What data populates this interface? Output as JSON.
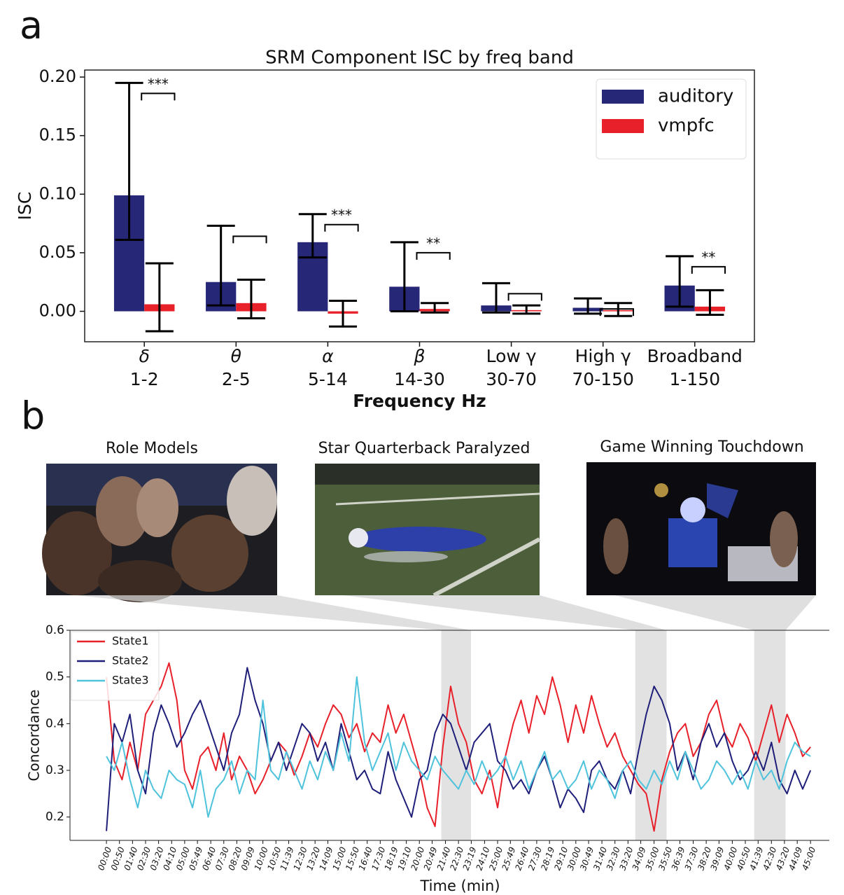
{
  "chart_data": [
    {
      "type": "bar",
      "panel": "a",
      "title": "SRM Component ISC by freq band",
      "xlabel": "Frequency Hz",
      "ylabel": "ISC",
      "categories": [
        [
          "δ",
          "1-2"
        ],
        [
          "θ",
          "2-5"
        ],
        [
          "α",
          "5-14"
        ],
        [
          "β",
          "14-30"
        ],
        [
          "Low γ",
          "30-70"
        ],
        [
          "High γ",
          "70-150"
        ],
        [
          "Broadband",
          "1-150"
        ]
      ],
      "series": [
        {
          "name": "auditory",
          "color": "#262877",
          "values": [
            0.099,
            0.025,
            0.059,
            0.021,
            0.005,
            0.003,
            0.022
          ],
          "ci_low": [
            0.061,
            0.005,
            0.046,
            0.0,
            -0.001,
            -0.002,
            0.004
          ],
          "ci_high": [
            0.195,
            0.073,
            0.083,
            0.059,
            0.024,
            0.011,
            0.047
          ]
        },
        {
          "name": "vmpfc",
          "color": "#e8202a",
          "values": [
            0.006,
            0.007,
            -0.002,
            0.002,
            0.001,
            0.001,
            0.004
          ],
          "ci_low": [
            -0.017,
            -0.006,
            -0.013,
            -0.001,
            -0.002,
            -0.004,
            -0.003
          ],
          "ci_high": [
            0.041,
            0.027,
            0.009,
            0.007,
            0.005,
            0.007,
            0.018
          ]
        }
      ],
      "significance": [
        "***",
        null,
        "***",
        "**",
        null,
        null,
        "**"
      ],
      "ylim": [
        -0.026,
        0.206
      ],
      "yticks": [
        {
          "value": 0,
          "label": "0.00"
        },
        {
          "value": 0.05,
          "label": "0.05"
        },
        {
          "value": 0.1,
          "label": "0.10"
        },
        {
          "value": 0.15,
          "label": "0.15"
        },
        {
          "value": 0.2,
          "label": "0.20"
        }
      ],
      "legend": "upper right",
      "grid": false
    },
    {
      "type": "line",
      "panel": "b",
      "xlabel": "Time (min)",
      "ylabel": "Concordance",
      "x": [
        0,
        0.5,
        1,
        1.5,
        2,
        2.5,
        3,
        3.5,
        4,
        4.5,
        5,
        5.5,
        6,
        6.5,
        7,
        7.5,
        8,
        8.5,
        9,
        9.5,
        10,
        10.5,
        11,
        11.5,
        12,
        12.5,
        13,
        13.5,
        14,
        14.5,
        15,
        15.5,
        16,
        16.5,
        17,
        17.5,
        18,
        18.5,
        19,
        19.5,
        20,
        20.5,
        21,
        21.5,
        22,
        22.5,
        23,
        23.5,
        24,
        24.5,
        25,
        25.5,
        26,
        26.5,
        27,
        27.5,
        28,
        28.5,
        29,
        29.5,
        30,
        30.5,
        31,
        31.5,
        32,
        32.5,
        33,
        33.5,
        34,
        34.5,
        35,
        35.5,
        36,
        36.5,
        37,
        37.5,
        38,
        38.5,
        39,
        39.5,
        40,
        40.5,
        41,
        41.5,
        42,
        42.5,
        43,
        43.5,
        44,
        44.5,
        45
      ],
      "series": [
        {
          "name": "State1",
          "color": "#e8202a",
          "values": [
            0.5,
            0.32,
            0.28,
            0.36,
            0.3,
            0.42,
            0.45,
            0.48,
            0.53,
            0.45,
            0.3,
            0.26,
            0.33,
            0.35,
            0.3,
            0.38,
            0.28,
            0.33,
            0.3,
            0.25,
            0.28,
            0.32,
            0.36,
            0.34,
            0.29,
            0.33,
            0.38,
            0.35,
            0.4,
            0.44,
            0.42,
            0.37,
            0.4,
            0.34,
            0.38,
            0.36,
            0.44,
            0.38,
            0.42,
            0.36,
            0.3,
            0.22,
            0.18,
            0.35,
            0.48,
            0.4,
            0.36,
            0.28,
            0.25,
            0.3,
            0.22,
            0.33,
            0.4,
            0.45,
            0.38,
            0.46,
            0.42,
            0.5,
            0.44,
            0.36,
            0.44,
            0.38,
            0.46,
            0.4,
            0.35,
            0.38,
            0.33,
            0.3,
            0.27,
            0.25,
            0.17,
            0.28,
            0.34,
            0.38,
            0.4,
            0.33,
            0.36,
            0.42,
            0.45,
            0.38,
            0.35,
            0.4,
            0.37,
            0.32,
            0.38,
            0.44,
            0.36,
            0.42,
            0.38,
            0.33,
            0.35
          ]
        },
        {
          "name": "State2",
          "color": "#1f1f7a",
          "values": [
            0.17,
            0.4,
            0.36,
            0.42,
            0.3,
            0.25,
            0.38,
            0.44,
            0.4,
            0.35,
            0.38,
            0.42,
            0.45,
            0.4,
            0.35,
            0.3,
            0.38,
            0.42,
            0.52,
            0.45,
            0.4,
            0.32,
            0.36,
            0.3,
            0.35,
            0.4,
            0.38,
            0.32,
            0.36,
            0.3,
            0.4,
            0.34,
            0.28,
            0.3,
            0.26,
            0.25,
            0.34,
            0.28,
            0.24,
            0.2,
            0.28,
            0.3,
            0.38,
            0.42,
            0.4,
            0.35,
            0.3,
            0.36,
            0.38,
            0.4,
            0.32,
            0.3,
            0.26,
            0.28,
            0.25,
            0.3,
            0.33,
            0.28,
            0.22,
            0.26,
            0.24,
            0.21,
            0.3,
            0.32,
            0.28,
            0.26,
            0.3,
            0.25,
            0.34,
            0.42,
            0.48,
            0.45,
            0.4,
            0.3,
            0.34,
            0.28,
            0.36,
            0.4,
            0.35,
            0.38,
            0.32,
            0.28,
            0.3,
            0.34,
            0.3,
            0.36,
            0.28,
            0.25,
            0.3,
            0.26,
            0.3
          ]
        },
        {
          "name": "State3",
          "color": "#4fc3dc",
          "values": [
            0.33,
            0.3,
            0.36,
            0.28,
            0.22,
            0.3,
            0.26,
            0.24,
            0.3,
            0.28,
            0.27,
            0.22,
            0.3,
            0.2,
            0.26,
            0.28,
            0.32,
            0.25,
            0.3,
            0.28,
            0.45,
            0.3,
            0.28,
            0.34,
            0.3,
            0.26,
            0.32,
            0.28,
            0.34,
            0.3,
            0.38,
            0.32,
            0.5,
            0.36,
            0.3,
            0.34,
            0.38,
            0.3,
            0.36,
            0.32,
            0.3,
            0.28,
            0.33,
            0.3,
            0.28,
            0.26,
            0.3,
            0.27,
            0.32,
            0.28,
            0.3,
            0.33,
            0.28,
            0.32,
            0.26,
            0.3,
            0.34,
            0.28,
            0.3,
            0.26,
            0.28,
            0.32,
            0.26,
            0.3,
            0.28,
            0.24,
            0.3,
            0.32,
            0.28,
            0.26,
            0.3,
            0.27,
            0.32,
            0.28,
            0.34,
            0.3,
            0.26,
            0.28,
            0.32,
            0.3,
            0.27,
            0.3,
            0.26,
            0.32,
            0.28,
            0.3,
            0.26,
            0.32,
            0.36,
            0.34,
            0.33
          ]
        }
      ],
      "scenes": [
        {
          "title": "Role Models",
          "start": 21.4,
          "end": 23.3
        },
        {
          "title": "Star Quarterback Paralyzed",
          "start": 33.8,
          "end": 35.8
        },
        {
          "title": "Game Winning Touchdown",
          "start": 41.4,
          "end": 43.4
        }
      ],
      "xlim": [
        -2.33,
        46.2
      ],
      "xticks": [
        {
          "value": 0,
          "label": "00:00"
        },
        {
          "value": 0.833,
          "label": "00:50"
        },
        {
          "value": 1.667,
          "label": "01:40"
        },
        {
          "value": 2.5,
          "label": "02:30"
        },
        {
          "value": 3.333,
          "label": "03:20"
        },
        {
          "value": 4.167,
          "label": "04:10"
        },
        {
          "value": 5,
          "label": "05:00"
        },
        {
          "value": 5.817,
          "label": "05:49"
        },
        {
          "value": 6.667,
          "label": "06:40"
        },
        {
          "value": 7.5,
          "label": "07:30"
        },
        {
          "value": 8.333,
          "label": "08:20"
        },
        {
          "value": 9.15,
          "label": "09:09"
        },
        {
          "value": 10,
          "label": "10:00"
        },
        {
          "value": 10.833,
          "label": "10:50"
        },
        {
          "value": 11.65,
          "label": "11:39"
        },
        {
          "value": 12.5,
          "label": "12:30"
        },
        {
          "value": 13.333,
          "label": "13:20"
        },
        {
          "value": 14.15,
          "label": "14:09"
        },
        {
          "value": 15,
          "label": "15:00"
        },
        {
          "value": 15.833,
          "label": "15:50"
        },
        {
          "value": 16.667,
          "label": "16:40"
        },
        {
          "value": 17.5,
          "label": "17:30"
        },
        {
          "value": 18.317,
          "label": "18:19"
        },
        {
          "value": 19.167,
          "label": "19:10"
        },
        {
          "value": 20,
          "label": "20:00"
        },
        {
          "value": 20.817,
          "label": "20:49"
        },
        {
          "value": 21.667,
          "label": "21:40"
        },
        {
          "value": 22.5,
          "label": "22:30"
        },
        {
          "value": 23.317,
          "label": "23:19"
        },
        {
          "value": 24.167,
          "label": "24:10"
        },
        {
          "value": 25,
          "label": "25:00"
        },
        {
          "value": 25.817,
          "label": "25:49"
        },
        {
          "value": 26.667,
          "label": "26:40"
        },
        {
          "value": 27.5,
          "label": "27:30"
        },
        {
          "value": 28.317,
          "label": "28:19"
        },
        {
          "value": 29.167,
          "label": "29:10"
        },
        {
          "value": 30,
          "label": "30:00"
        },
        {
          "value": 30.817,
          "label": "30:49"
        },
        {
          "value": 31.667,
          "label": "31:40"
        },
        {
          "value": 32.5,
          "label": "32:30"
        },
        {
          "value": 33.333,
          "label": "33:20"
        },
        {
          "value": 34.15,
          "label": "34:09"
        },
        {
          "value": 35,
          "label": "35:00"
        },
        {
          "value": 35.833,
          "label": "35:50"
        },
        {
          "value": 36.65,
          "label": "36:39"
        },
        {
          "value": 37.5,
          "label": "37:30"
        },
        {
          "value": 38.333,
          "label": "38:20"
        },
        {
          "value": 39.15,
          "label": "39:09"
        },
        {
          "value": 40,
          "label": "40:00"
        },
        {
          "value": 40.833,
          "label": "40:50"
        },
        {
          "value": 41.65,
          "label": "41:39"
        },
        {
          "value": 42.5,
          "label": "42:30"
        },
        {
          "value": 43.333,
          "label": "43:20"
        },
        {
          "value": 44.15,
          "label": "44:09"
        },
        {
          "value": 45,
          "label": "45:00"
        }
      ],
      "ylim": [
        0.15,
        0.6
      ],
      "yticks": [
        0.2,
        0.3,
        0.4,
        0.5,
        0.6
      ],
      "legend": "upper left",
      "grid": false
    }
  ]
}
